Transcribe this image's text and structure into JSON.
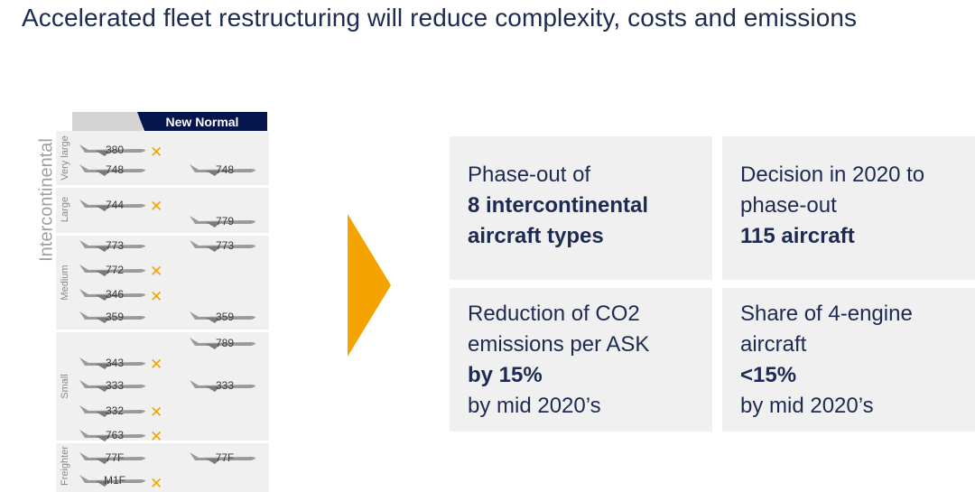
{
  "title": "Accelerated fleet restructuring will reduce complexity, costs and emissions",
  "fleet": {
    "header": "New Normal",
    "group_label": "Intercontinental",
    "band_labels": {
      "very_large": "Very large",
      "large": "Large",
      "medium": "Medium",
      "small": "Small",
      "freighter": "Freighter"
    },
    "aircraft": {
      "a380": "380",
      "a748_old": "748",
      "a748_new": "748",
      "a744": "744",
      "a779": "779",
      "a773_old": "773",
      "a773_new": "773",
      "a772": "772",
      "a346": "346",
      "a359_old": "359",
      "a359_new": "359",
      "a789": "789",
      "a343": "343",
      "a333_old": "333",
      "a333_new": "333",
      "a332": "332",
      "a763": "763",
      "a77f_old": "77F",
      "a77f_new": "77F",
      "am1f": "M1F"
    },
    "phase_out_marker": "✕",
    "colors": {
      "navy": "#05164d",
      "accent": "#f5a300"
    }
  },
  "boxes": {
    "box1": {
      "line1": "Phase-out of",
      "line2": "8 intercontinental",
      "line3": "aircraft types"
    },
    "box2": {
      "line1": "Decision in 2020 to",
      "line2": "phase-out",
      "line3": "115 aircraft"
    },
    "box3": {
      "line1": "Reduction of CO2",
      "line2": "emissions per ASK",
      "line3": "by 15%",
      "line4": "by mid 2020’s"
    },
    "box4": {
      "line1": "Share of 4-engine",
      "line2": "aircraft",
      "line3": "<15%",
      "line4": "by mid 2020’s"
    }
  }
}
